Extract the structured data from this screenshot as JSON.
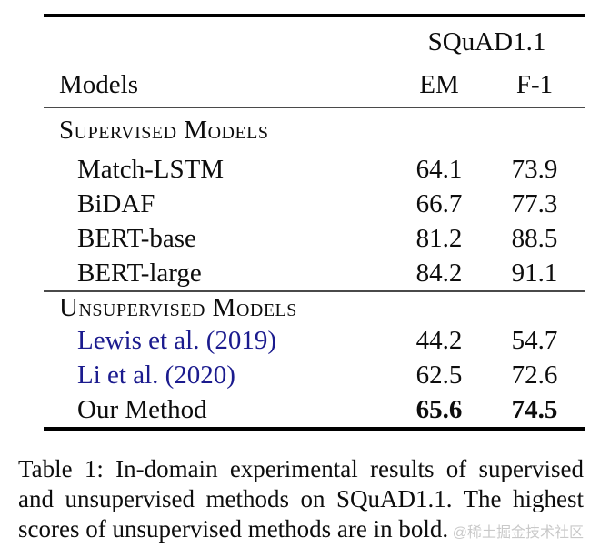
{
  "table": {
    "group_header": "SQuAD1.1",
    "columns": {
      "models": "Models",
      "em": "EM",
      "f1": "F-1"
    },
    "sections": [
      {
        "header": "Supervised Models",
        "rows": [
          {
            "label": "Match-LSTM",
            "em": "64.1",
            "f1": "73.9"
          },
          {
            "label": "BiDAF",
            "em": "66.7",
            "f1": "77.3"
          },
          {
            "label": "BERT-base",
            "em": "81.2",
            "f1": "88.5"
          },
          {
            "label": "BERT-large",
            "em": "84.2",
            "f1": "91.1"
          }
        ]
      },
      {
        "header": "Unsupervised Models",
        "rows": [
          {
            "label": "Lewis et al. (2019)",
            "em": "44.2",
            "f1": "54.7"
          },
          {
            "label": "Li et al. (2020)",
            "em": "62.5",
            "f1": "72.6"
          },
          {
            "label": "Our Method",
            "em": "65.6",
            "f1": "74.5"
          }
        ]
      }
    ]
  },
  "caption": {
    "lines": [
      "Table 1: In-domain experimental results of supervised",
      "and unsupervised methods on SQuAD1.1. The highest",
      "scores of unsupervised methods are in bold."
    ]
  },
  "watermark": "@稀土掘金技术社区",
  "colors": {
    "text": "#0d0d0d",
    "citation-link": "#1b1b8e",
    "watermark": "#c9c9c9",
    "rule-heavy": "#000000",
    "rule-light": "#4a4a4a"
  }
}
